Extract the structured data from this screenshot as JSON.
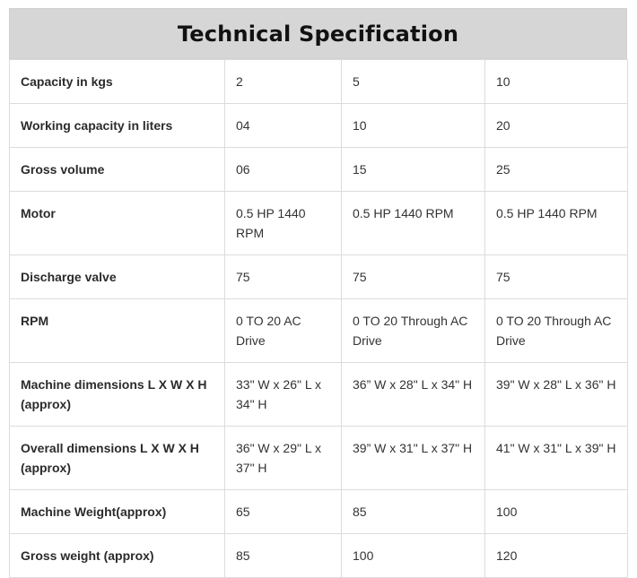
{
  "title": "Technical Specification",
  "rows": [
    {
      "label": "Capacity in kgs",
      "values": [
        "2",
        "5",
        "10"
      ]
    },
    {
      "label": "Working capacity in liters",
      "values": [
        "04",
        "10",
        "20"
      ]
    },
    {
      "label": "Gross volume",
      "values": [
        "06",
        "15",
        "25"
      ]
    },
    {
      "label": "Motor",
      "values": [
        "0.5 HP 1440 RPM",
        "0.5 HP 1440 RPM",
        "0.5 HP 1440 RPM"
      ]
    },
    {
      "label": "Discharge valve",
      "values": [
        "75",
        "75",
        "75"
      ]
    },
    {
      "label": "RPM",
      "values": [
        "0 TO 20 AC Drive",
        "0 TO 20 Through AC Drive",
        "0 TO 20 Through AC Drive"
      ]
    },
    {
      "label": "Machine dimensions L X W X H (approx)",
      "values": [
        "33\" W x 26\" L x 34\" H",
        "36” W x 28\" L x 34\" H",
        "39\" W x 28\" L x 36\" H"
      ]
    },
    {
      "label": "Overall dimensions L X W X H (approx)",
      "values": [
        "36\" W x 29\" L x 37\" H",
        "39” W x 31\" L x 37\" H",
        "41\" W x 31\" L x 39\" H"
      ]
    },
    {
      "label": "Machine Weight(approx)",
      "values": [
        "65",
        "85",
        "100"
      ]
    },
    {
      "label": "Gross weight (approx)",
      "values": [
        "85",
        "100",
        "120"
      ]
    }
  ]
}
